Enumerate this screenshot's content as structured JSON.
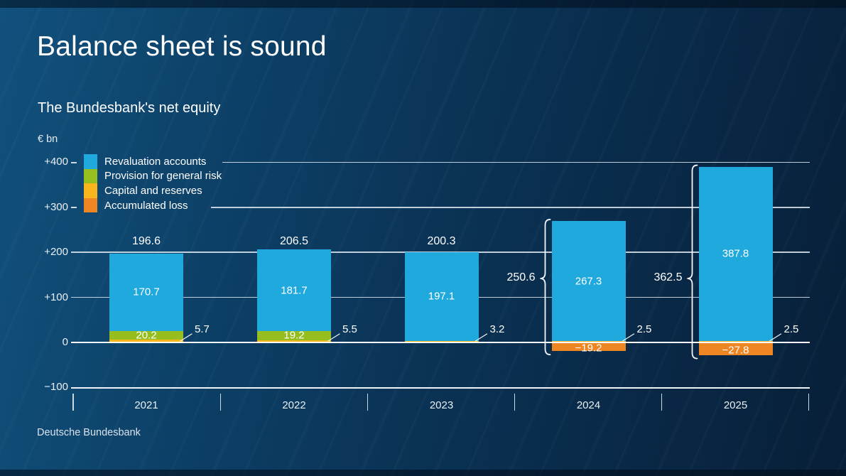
{
  "header": {
    "title": "Balance sheet is sound"
  },
  "footer": {
    "source": "Deutsche Bundesbank"
  },
  "colors": {
    "revaluation": "#1fa9dd",
    "provision": "#95be1e",
    "capital": "#f8b61c",
    "accumulated": "#ee8623",
    "grid": "#dfe9f1",
    "zero_line": "#ffffff",
    "text": "#ffffff",
    "background_left": "#11517d",
    "background_right": "#081f38"
  },
  "chart_data": {
    "type": "bar",
    "stacked": true,
    "title": "The Bundesbank's net equity",
    "unit": "€ bn",
    "categories": [
      "2021",
      "2022",
      "2023",
      "2024",
      "2025"
    ],
    "series": [
      {
        "name": "Revaluation accounts",
        "color_key": "revaluation",
        "values": [
          170.7,
          181.7,
          197.1,
          267.3,
          387.8
        ]
      },
      {
        "name": "Provision for general risk",
        "color_key": "provision",
        "values": [
          20.2,
          19.2,
          0,
          0,
          0
        ]
      },
      {
        "name": "Capital and reserves",
        "color_key": "capital",
        "values": [
          5.7,
          5.5,
          3.2,
          2.5,
          2.5
        ]
      },
      {
        "name": "Accumulated loss",
        "color_key": "accumulated",
        "values": [
          0,
          0,
          0,
          -19.2,
          -27.8
        ]
      }
    ],
    "totals_above_bars": [
      196.6,
      206.5,
      200.3,
      null,
      null
    ],
    "net_equity_braces": [
      null,
      null,
      null,
      250.6,
      362.5
    ],
    "y_axis": {
      "ticks": [
        400,
        300,
        200,
        100,
        0,
        -100
      ],
      "labels": [
        "+400",
        "+300",
        "+200",
        "+100",
        "0",
        "−100"
      ],
      "range": [
        -100,
        400
      ]
    },
    "grid": true,
    "legend_position": "top-left-inside"
  }
}
